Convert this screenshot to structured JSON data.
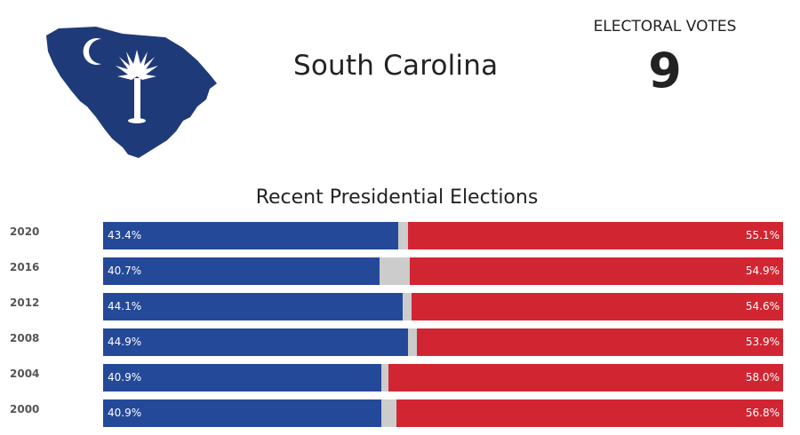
{
  "header": {
    "state_name": "South Carolina",
    "electoral_label": "ELECTORAL VOTES",
    "electoral_votes": "9"
  },
  "colors": {
    "democrat": "#244999",
    "republican": "#d22532",
    "other": "#cccccc",
    "map_fill": "#1f3a78"
  },
  "icons": {
    "state_map": "south-carolina-flag-map-icon"
  },
  "chart_data": {
    "type": "bar",
    "stacked": true,
    "orientation": "horizontal",
    "title": "Recent Presidential Elections",
    "categories": [
      "2020",
      "2016",
      "2012",
      "2008",
      "2004",
      "2000"
    ],
    "series": [
      {
        "color": "#244999",
        "values": [
          43.4,
          40.7,
          44.1,
          44.9,
          40.9,
          40.9
        ],
        "labels": [
          "43.4%",
          "40.7%",
          "44.1%",
          "44.9%",
          "40.9%",
          "40.9%"
        ]
      },
      {
        "color": "#cccccc",
        "values": [
          1.5,
          4.4,
          1.3,
          1.2,
          1.1,
          2.3
        ]
      },
      {
        "color": "#d22532",
        "values": [
          55.1,
          54.9,
          54.6,
          53.9,
          58.0,
          56.8
        ],
        "labels": [
          "55.1%",
          "54.9%",
          "54.6%",
          "53.9%",
          "58.0%",
          "56.8%"
        ]
      }
    ],
    "xlim": [
      0,
      100
    ]
  }
}
